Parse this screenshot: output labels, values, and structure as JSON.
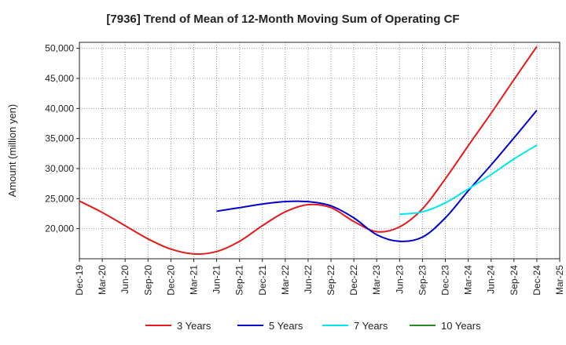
{
  "chart_data": {
    "type": "line",
    "title": "[7936]  Trend of Mean of 12-Month Moving Sum of Operating CF",
    "xlabel": "",
    "ylabel": "Amount (million yen)",
    "ylim": [
      15000,
      51000
    ],
    "y_ticks": [
      20000,
      25000,
      30000,
      35000,
      40000,
      45000,
      50000
    ],
    "y_tick_labels": [
      "20,000",
      "25,000",
      "30,000",
      "35,000",
      "40,000",
      "45,000",
      "50,000"
    ],
    "x_ticks": [
      "Dec-19",
      "Mar-20",
      "Jun-20",
      "Sep-20",
      "Dec-20",
      "Mar-21",
      "Jun-21",
      "Sep-21",
      "Dec-21",
      "Mar-22",
      "Jun-22",
      "Sep-22",
      "Dec-22",
      "Mar-23",
      "Jun-23",
      "Sep-23",
      "Dec-23",
      "Mar-24",
      "Jun-24",
      "Sep-24",
      "Dec-24",
      "Mar-25"
    ],
    "grid": true,
    "legend_position": "bottom",
    "series": [
      {
        "name": "3 Years",
        "color": "#e41a1c",
        "points": [
          [
            0,
            24600
          ],
          [
            1,
            22700
          ],
          [
            2,
            20500
          ],
          [
            3,
            18300
          ],
          [
            4,
            16600
          ],
          [
            5,
            15800
          ],
          [
            6,
            16200
          ],
          [
            7,
            17900
          ],
          [
            8,
            20500
          ],
          [
            9,
            22800
          ],
          [
            10,
            24000
          ],
          [
            11,
            23500
          ],
          [
            12,
            21200
          ],
          [
            13,
            19500
          ],
          [
            14,
            20300
          ],
          [
            15,
            23300
          ],
          [
            16,
            28300
          ],
          [
            17,
            33800
          ],
          [
            18,
            39200
          ],
          [
            19,
            44800
          ],
          [
            20,
            50300
          ]
        ]
      },
      {
        "name": "5 Years",
        "color": "#0000cc",
        "points": [
          [
            6,
            22900
          ],
          [
            7,
            23500
          ],
          [
            8,
            24100
          ],
          [
            9,
            24500
          ],
          [
            10,
            24500
          ],
          [
            11,
            23800
          ],
          [
            12,
            21800
          ],
          [
            13,
            19000
          ],
          [
            14,
            17900
          ],
          [
            15,
            18600
          ],
          [
            16,
            21800
          ],
          [
            17,
            26300
          ],
          [
            18,
            30600
          ],
          [
            19,
            35100
          ],
          [
            20,
            39700
          ]
        ]
      },
      {
        "name": "7 Years",
        "color": "#00e5ee",
        "points": [
          [
            14,
            22400
          ],
          [
            15,
            22800
          ],
          [
            16,
            24300
          ],
          [
            17,
            26600
          ],
          [
            18,
            29000
          ],
          [
            19,
            31600
          ],
          [
            20,
            33900
          ]
        ]
      },
      {
        "name": "10 Years",
        "color": "#228b22",
        "points": []
      }
    ]
  }
}
